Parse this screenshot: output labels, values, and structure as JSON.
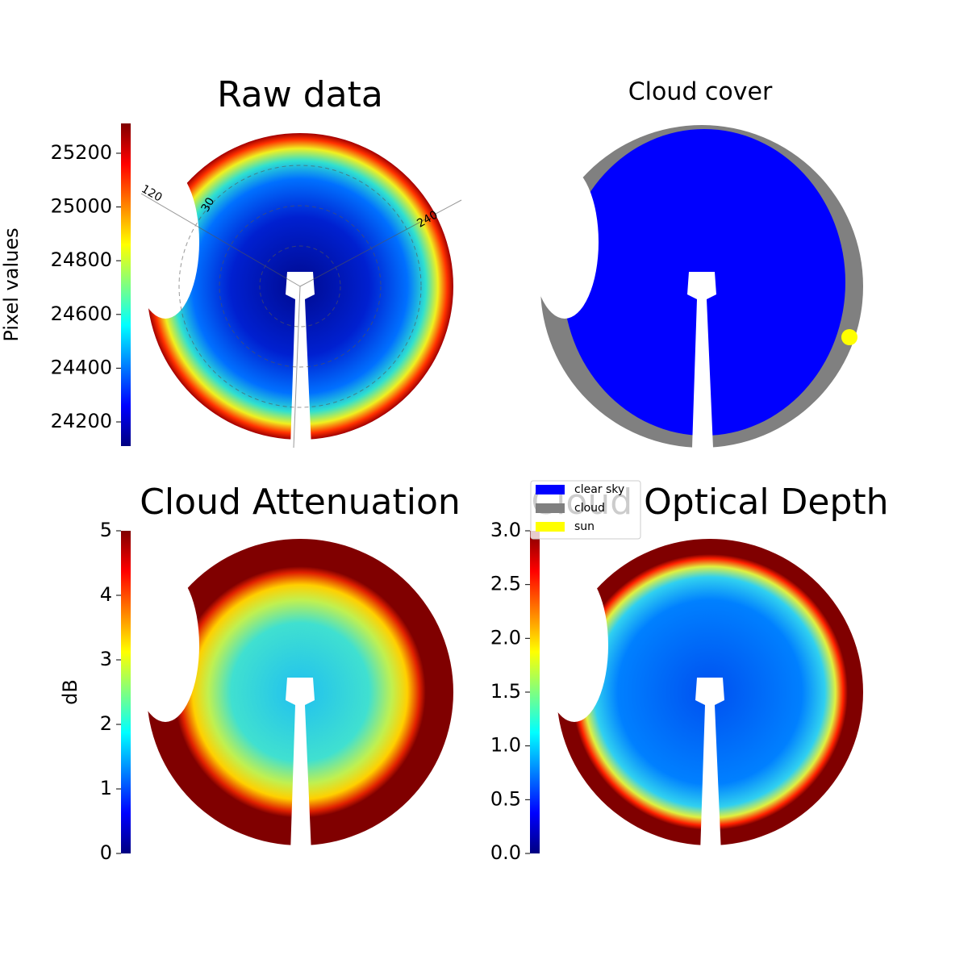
{
  "chart_data": [
    {
      "type": "image",
      "title": "Raw data",
      "colorbar_label": "Pixel values",
      "clim": [
        24110,
        25311
      ],
      "cticks": [
        24200,
        24400,
        24600,
        24800,
        25000,
        25200
      ],
      "annotations": [
        "120",
        "30",
        "240"
      ]
    },
    {
      "type": "classes",
      "title": "Cloud cover",
      "legend": [
        {
          "label": "clear sky",
          "color": "#0000ff"
        },
        {
          "label": "cloud",
          "color": "#808080"
        },
        {
          "label": "sun",
          "color": "#ffff00"
        }
      ]
    },
    {
      "type": "image",
      "title": "Cloud Attenuation",
      "colorbar_label": "dB",
      "clim": [
        0,
        5
      ],
      "cticks": [
        0,
        1,
        2,
        3,
        4,
        5
      ]
    },
    {
      "type": "image",
      "title": "Cloud Optical Depth",
      "clim": [
        0,
        3
      ],
      "cticks": [
        {
          "value": 0,
          "label": "0.0"
        },
        {
          "value": 0.5,
          "label": "0.5"
        },
        {
          "value": 1,
          "label": "1.0"
        },
        {
          "value": 1.5,
          "label": "1.5"
        },
        {
          "value": 2,
          "label": "2.0"
        },
        {
          "value": 2.5,
          "label": "2.5"
        },
        {
          "value": 3,
          "label": "3.0"
        }
      ]
    }
  ]
}
